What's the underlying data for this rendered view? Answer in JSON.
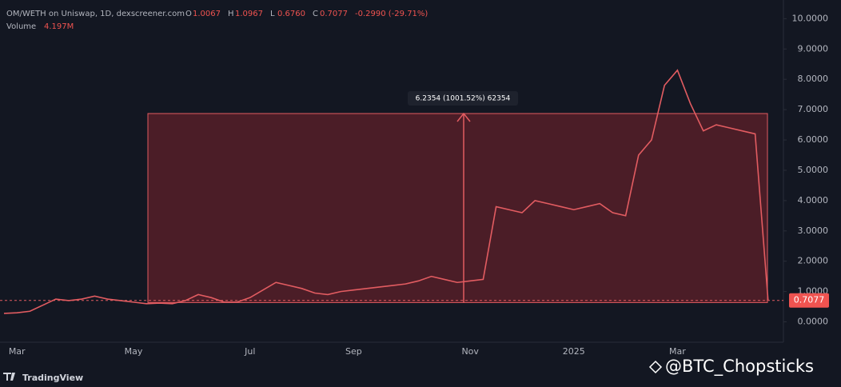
{
  "header": {
    "symbol": "OM/WETH on Uniswap, 1D, dexscreener.com",
    "ohlc": [
      [
        "O",
        "1.0067"
      ],
      [
        "H",
        "1.0967"
      ],
      [
        "L",
        "0.6760"
      ],
      [
        "C",
        "0.7077"
      ]
    ],
    "change": "-0.2990 (-29.71%)",
    "volume_label": "Volume",
    "volume": "4.197M",
    "brand": "TradingView",
    "watermark": "@BTC_Chopsticks"
  },
  "chart_data": {
    "type": "line",
    "color": "#e25c61",
    "categories": [
      null,
      "Mar",
      null,
      null,
      null,
      null,
      null,
      null,
      null,
      null,
      "May",
      null,
      null,
      null,
      null,
      null,
      null,
      null,
      null,
      "Jul",
      null,
      null,
      null,
      null,
      null,
      null,
      null,
      "Sep",
      null,
      null,
      null,
      null,
      null,
      null,
      null,
      null,
      "Nov",
      null,
      null,
      null,
      null,
      null,
      null,
      null,
      "2025",
      null,
      null,
      null,
      null,
      null,
      null,
      null,
      "Mar",
      null,
      null,
      null,
      null,
      null,
      null,
      null
    ],
    "values": [
      0.28,
      0.3,
      0.35,
      0.55,
      0.75,
      0.7,
      0.75,
      0.85,
      0.75,
      0.7,
      0.65,
      0.6,
      0.62,
      0.6,
      0.7,
      0.9,
      0.8,
      0.65,
      0.65,
      0.8,
      1.05,
      1.3,
      1.2,
      1.1,
      0.95,
      0.9,
      1.0,
      1.05,
      1.1,
      1.15,
      1.2,
      1.25,
      1.35,
      1.5,
      1.4,
      1.3,
      1.35,
      1.4,
      3.8,
      3.7,
      3.6,
      4.0,
      3.9,
      3.8,
      3.7,
      3.8,
      3.9,
      3.6,
      3.5,
      5.5,
      6.0,
      7.8,
      8.3,
      7.2,
      6.3,
      6.5,
      6.4,
      6.3,
      6.2,
      0.7077
    ],
    "ylim": [
      -0.25,
      10.3
    ],
    "yticks": [
      {
        "value": 0,
        "label": "0.0000"
      },
      {
        "value": 1,
        "label": "1.0000"
      },
      {
        "value": 2,
        "label": "2.0000"
      },
      {
        "value": 3,
        "label": "3.0000"
      },
      {
        "value": 4,
        "label": "4.0000"
      },
      {
        "value": 5,
        "label": "5.0000"
      },
      {
        "value": 6,
        "label": "6.0000"
      },
      {
        "value": 7,
        "label": "7.0000"
      },
      {
        "value": 8,
        "label": "8.0000"
      },
      {
        "value": 9,
        "label": "9.0000"
      },
      {
        "value": 10,
        "label": "10.0000"
      }
    ],
    "range_box": {
      "low": 0.6361,
      "high": 6.8715,
      "label": "6.2354 (1001.52%) 62354"
    },
    "last_price": {
      "value": 0.7077,
      "label": "0.7077"
    }
  }
}
